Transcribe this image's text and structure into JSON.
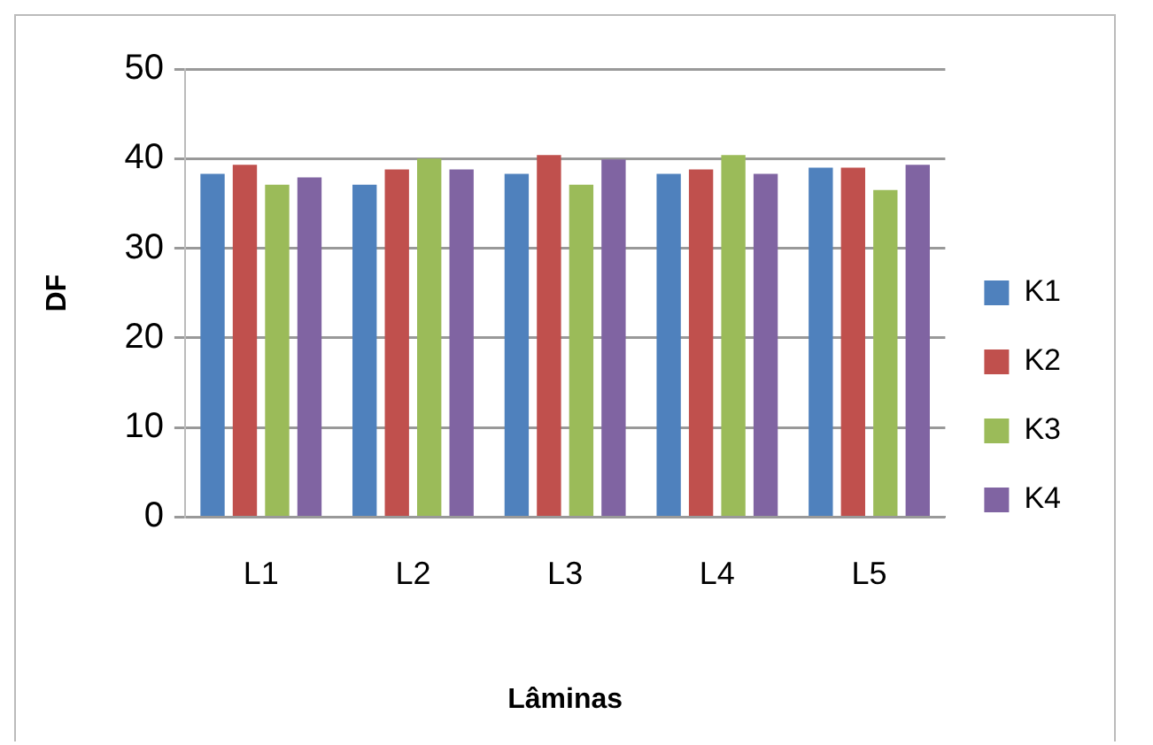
{
  "chart_data": {
    "type": "bar",
    "xlabel": "Lâminas",
    "ylabel": "DF",
    "categories": [
      "L1",
      "L2",
      "L3",
      "L4",
      "L5"
    ],
    "series": [
      {
        "name": "K1",
        "color": "#4f81bd",
        "values": [
          38.3,
          37.1,
          38.3,
          38.3,
          39.0
        ]
      },
      {
        "name": "K2",
        "color": "#c0504d",
        "values": [
          39.3,
          38.8,
          40.4,
          38.8,
          39.0
        ]
      },
      {
        "name": "K3",
        "color": "#9bbb59",
        "values": [
          37.1,
          40.0,
          37.1,
          40.4,
          36.5
        ]
      },
      {
        "name": "K4",
        "color": "#8064a2",
        "values": [
          37.9,
          38.8,
          39.9,
          38.3,
          39.3
        ]
      }
    ],
    "ylim": [
      0,
      50
    ],
    "yticks": [
      0,
      10,
      20,
      30,
      40,
      50
    ],
    "grid": "y",
    "legend": "right"
  }
}
